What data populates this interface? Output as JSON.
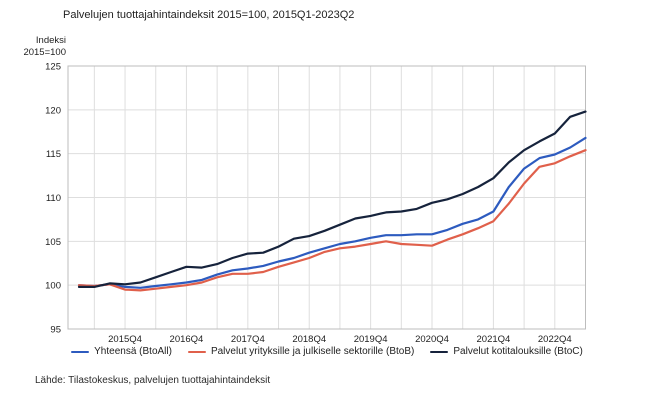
{
  "title": "Palvelujen tuottajahintaindeksit 2015=100, 2015Q1-2023Q2",
  "y_axis_unit": "Indeksi\n2015=100",
  "source": "Lähde: Tilastokeskus, palvelujen tuottajahintaindeksit",
  "colors": {
    "btoall": "#2d5bbf",
    "btob": "#e0604b",
    "btoc": "#16233c",
    "grid": "#dedede",
    "border": "#bdbdbd",
    "tick_text": "#1f1f1f"
  },
  "legend": [
    {
      "label": "Yhteensä (BtoAll)",
      "color_key": "btoall"
    },
    {
      "label": "Palvelut yrityksille ja julkiselle sektorille (BtoB)",
      "color_key": "btob"
    },
    {
      "label": "Palvelut kotitalouksille (BtoC)",
      "color_key": "btoc"
    }
  ],
  "chart_data": {
    "type": "line",
    "title": "Palvelujen tuottajahintaindeksit 2015=100, 2015Q1-2023Q2",
    "xlabel": "",
    "ylabel": "Indeksi 2015=100",
    "ylim": [
      95,
      125
    ],
    "y_ticks": [
      95,
      100,
      105,
      110,
      115,
      120,
      125
    ],
    "grid": true,
    "legend_position": "bottom",
    "categories": [
      "2015Q1",
      "2015Q2",
      "2015Q3",
      "2015Q4",
      "2016Q1",
      "2016Q2",
      "2016Q3",
      "2016Q4",
      "2017Q1",
      "2017Q2",
      "2017Q3",
      "2017Q4",
      "2018Q1",
      "2018Q2",
      "2018Q3",
      "2018Q4",
      "2019Q1",
      "2019Q2",
      "2019Q3",
      "2019Q4",
      "2020Q1",
      "2020Q2",
      "2020Q3",
      "2020Q4",
      "2021Q1",
      "2021Q2",
      "2021Q3",
      "2021Q4",
      "2022Q1",
      "2022Q2",
      "2022Q3",
      "2022Q4",
      "2023Q1",
      "2023Q2"
    ],
    "x_tick_labels": [
      "2015Q4",
      "2016Q4",
      "2017Q4",
      "2018Q4",
      "2019Q4",
      "2020Q4",
      "2021Q4",
      "2022Q4"
    ],
    "x_tick_indices": [
      3,
      7,
      11,
      15,
      19,
      23,
      27,
      31
    ],
    "series": [
      {
        "name": "Yhteensä (BtoAll)",
        "color_key": "btoall",
        "values": [
          100.0,
          99.9,
          100.1,
          99.8,
          99.7,
          99.9,
          100.1,
          100.3,
          100.6,
          101.2,
          101.7,
          101.9,
          102.2,
          102.7,
          103.1,
          103.7,
          104.2,
          104.7,
          105.0,
          105.4,
          105.7,
          105.7,
          105.8,
          105.8,
          106.3,
          107.0,
          107.5,
          108.4,
          111.2,
          113.3,
          114.5,
          114.9,
          115.7,
          116.8
        ]
      },
      {
        "name": "Palvelut yrityksille ja julkiselle sektorille (BtoB)",
        "color_key": "btob",
        "values": [
          100.0,
          99.9,
          100.1,
          99.5,
          99.4,
          99.6,
          99.8,
          100.0,
          100.3,
          100.9,
          101.3,
          101.3,
          101.5,
          102.1,
          102.6,
          103.1,
          103.8,
          104.2,
          104.4,
          104.7,
          105.0,
          104.7,
          104.6,
          104.5,
          105.2,
          105.8,
          106.5,
          107.3,
          109.3,
          111.6,
          113.5,
          113.9,
          114.7,
          115.4
        ]
      },
      {
        "name": "Palvelut kotitalouksille (BtoC)",
        "color_key": "btoc",
        "values": [
          99.8,
          99.8,
          100.2,
          100.1,
          100.3,
          100.9,
          101.5,
          102.1,
          102.0,
          102.4,
          103.1,
          103.6,
          103.7,
          104.4,
          105.3,
          105.6,
          106.2,
          106.9,
          107.6,
          107.9,
          108.3,
          108.4,
          108.7,
          109.4,
          109.8,
          110.4,
          111.2,
          112.2,
          114.0,
          115.4,
          116.4,
          117.3,
          119.2,
          119.8
        ]
      }
    ]
  }
}
